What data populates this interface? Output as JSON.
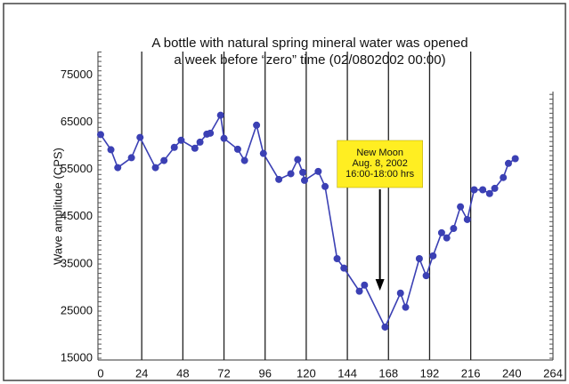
{
  "chart_data": {
    "type": "line",
    "title": [
      "A bottle with natural spring mineral water was opened",
      "a week before “zero” time (02/0802002 00:00)"
    ],
    "y_label": "Wave amplitude (CPS)",
    "x": [
      0,
      6,
      10,
      18,
      23,
      32,
      37,
      43,
      47,
      55,
      58,
      62,
      64,
      70,
      72,
      80,
      84,
      91,
      95,
      104,
      111,
      115,
      118,
      119,
      127,
      131,
      138,
      142,
      151,
      154,
      166,
      175,
      178,
      186,
      190,
      194,
      199,
      202,
      206,
      210,
      214,
      218,
      223,
      227,
      230,
      235,
      238,
      242
    ],
    "values": [
      62400,
      59200,
      55400,
      57500,
      61800,
      55400,
      56900,
      59700,
      61200,
      59500,
      60800,
      62500,
      62700,
      66500,
      61600,
      59300,
      56900,
      64400,
      58400,
      52900,
      54100,
      57100,
      54400,
      52700,
      54600,
      51400,
      36100,
      34100,
      29200,
      30500,
      21600,
      28800,
      25800,
      36100,
      32500,
      36700,
      41600,
      40500,
      42500,
      47100,
      44400,
      50700,
      50700,
      49900,
      51000,
      53300,
      56300,
      57300
    ],
    "color": "#3b40b4",
    "xlim": [
      0,
      264
    ],
    "xticks": [
      0,
      24,
      48,
      72,
      96,
      120,
      144,
      168,
      192,
      216,
      240,
      264
    ],
    "xgrid": [
      24,
      48,
      72,
      96,
      120,
      144,
      168,
      192,
      216
    ],
    "ylim": [
      15000,
      80000
    ],
    "yticks": [
      15000,
      25000,
      35000,
      45000,
      55000,
      65000,
      75000
    ],
    "annotation": {
      "lines": [
        "New Moon",
        "Aug. 8, 2002",
        "16:00-18:00 hrs"
      ],
      "x": 163,
      "box_color": "#ffee22"
    }
  }
}
